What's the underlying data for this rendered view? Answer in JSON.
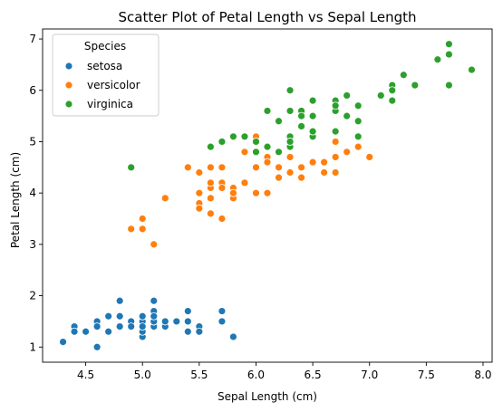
{
  "chart_data": {
    "type": "scatter",
    "title": "Scatter Plot of Petal Length vs Sepal Length",
    "xlabel": "Sepal Length (cm)",
    "ylabel": "Petal Length (cm)",
    "xlim": [
      4.12,
      8.08
    ],
    "ylim": [
      0.705,
      7.195
    ],
    "xticks": [
      4.5,
      5.0,
      5.5,
      6.0,
      6.5,
      7.0,
      7.5,
      8.0
    ],
    "xtick_labels": [
      "4.5",
      "5.0",
      "5.5",
      "6.0",
      "6.5",
      "7.0",
      "7.5",
      "8.0"
    ],
    "yticks": [
      1,
      2,
      3,
      4,
      5,
      6,
      7
    ],
    "ytick_labels": [
      "1",
      "2",
      "3",
      "4",
      "5",
      "6",
      "7"
    ],
    "grid": false,
    "legend": {
      "title": "Species",
      "placement": "top-left"
    },
    "series": [
      {
        "name": "setosa",
        "color": "#1f77b4",
        "points": [
          [
            5.1,
            1.4
          ],
          [
            4.9,
            1.4
          ],
          [
            4.7,
            1.3
          ],
          [
            4.6,
            1.5
          ],
          [
            5.0,
            1.4
          ],
          [
            5.4,
            1.7
          ],
          [
            4.6,
            1.4
          ],
          [
            5.0,
            1.5
          ],
          [
            4.4,
            1.4
          ],
          [
            4.9,
            1.5
          ],
          [
            5.4,
            1.5
          ],
          [
            4.8,
            1.6
          ],
          [
            4.8,
            1.4
          ],
          [
            4.3,
            1.1
          ],
          [
            5.8,
            1.2
          ],
          [
            5.7,
            1.5
          ],
          [
            5.4,
            1.3
          ],
          [
            5.1,
            1.4
          ],
          [
            5.7,
            1.7
          ],
          [
            5.1,
            1.5
          ],
          [
            5.4,
            1.7
          ],
          [
            5.1,
            1.5
          ],
          [
            4.6,
            1.0
          ],
          [
            5.1,
            1.7
          ],
          [
            4.8,
            1.9
          ],
          [
            5.0,
            1.6
          ],
          [
            5.0,
            1.6
          ],
          [
            5.2,
            1.5
          ],
          [
            5.2,
            1.4
          ],
          [
            4.7,
            1.6
          ],
          [
            4.8,
            1.6
          ],
          [
            5.4,
            1.5
          ],
          [
            5.2,
            1.5
          ],
          [
            5.5,
            1.4
          ],
          [
            4.9,
            1.5
          ],
          [
            5.0,
            1.2
          ],
          [
            5.5,
            1.3
          ],
          [
            4.9,
            1.4
          ],
          [
            4.4,
            1.3
          ],
          [
            5.1,
            1.5
          ],
          [
            5.0,
            1.3
          ],
          [
            4.5,
            1.3
          ],
          [
            4.4,
            1.3
          ],
          [
            5.0,
            1.6
          ],
          [
            5.1,
            1.9
          ],
          [
            4.8,
            1.4
          ],
          [
            5.1,
            1.6
          ],
          [
            4.6,
            1.4
          ],
          [
            5.3,
            1.5
          ],
          [
            5.0,
            1.4
          ]
        ]
      },
      {
        "name": "versicolor",
        "color": "#ff7f0e",
        "points": [
          [
            7.0,
            4.7
          ],
          [
            6.4,
            4.5
          ],
          [
            6.9,
            4.9
          ],
          [
            5.5,
            4.0
          ],
          [
            6.5,
            4.6
          ],
          [
            5.7,
            4.5
          ],
          [
            6.3,
            4.7
          ],
          [
            4.9,
            3.3
          ],
          [
            6.6,
            4.6
          ],
          [
            5.2,
            3.9
          ],
          [
            5.0,
            3.5
          ],
          [
            5.9,
            4.2
          ],
          [
            6.0,
            4.0
          ],
          [
            6.1,
            4.7
          ],
          [
            5.6,
            3.6
          ],
          [
            6.7,
            4.4
          ],
          [
            5.6,
            4.5
          ],
          [
            5.8,
            4.1
          ],
          [
            6.2,
            4.5
          ],
          [
            5.6,
            3.9
          ],
          [
            5.9,
            4.8
          ],
          [
            6.1,
            4.0
          ],
          [
            6.3,
            4.9
          ],
          [
            6.1,
            4.7
          ],
          [
            6.4,
            4.3
          ],
          [
            6.6,
            4.4
          ],
          [
            6.8,
            4.8
          ],
          [
            6.7,
            5.0
          ],
          [
            6.0,
            4.5
          ],
          [
            5.7,
            3.5
          ],
          [
            5.5,
            3.8
          ],
          [
            5.5,
            3.7
          ],
          [
            5.8,
            3.9
          ],
          [
            6.0,
            5.1
          ],
          [
            5.4,
            4.5
          ],
          [
            6.0,
            4.5
          ],
          [
            6.7,
            4.7
          ],
          [
            6.3,
            4.4
          ],
          [
            5.6,
            4.1
          ],
          [
            5.5,
            4.0
          ],
          [
            5.5,
            4.4
          ],
          [
            6.1,
            4.6
          ],
          [
            5.8,
            4.0
          ],
          [
            5.0,
            3.3
          ],
          [
            5.6,
            4.2
          ],
          [
            5.7,
            4.2
          ],
          [
            5.7,
            4.2
          ],
          [
            6.2,
            4.3
          ],
          [
            5.1,
            3.0
          ],
          [
            5.7,
            4.1
          ]
        ]
      },
      {
        "name": "virginica",
        "color": "#2ca02c",
        "points": [
          [
            6.3,
            6.0
          ],
          [
            5.8,
            5.1
          ],
          [
            7.1,
            5.9
          ],
          [
            6.3,
            5.6
          ],
          [
            6.5,
            5.8
          ],
          [
            7.6,
            6.6
          ],
          [
            4.9,
            4.5
          ],
          [
            7.3,
            6.3
          ],
          [
            6.7,
            5.8
          ],
          [
            7.2,
            6.1
          ],
          [
            6.5,
            5.1
          ],
          [
            6.4,
            5.3
          ],
          [
            6.8,
            5.5
          ],
          [
            5.7,
            5.0
          ],
          [
            5.8,
            5.1
          ],
          [
            6.4,
            5.3
          ],
          [
            6.5,
            5.5
          ],
          [
            7.7,
            6.7
          ],
          [
            7.7,
            6.9
          ],
          [
            6.0,
            5.0
          ],
          [
            6.9,
            5.7
          ],
          [
            5.6,
            4.9
          ],
          [
            7.7,
            6.7
          ],
          [
            6.3,
            4.9
          ],
          [
            6.7,
            5.7
          ],
          [
            7.2,
            6.0
          ],
          [
            6.2,
            4.8
          ],
          [
            6.1,
            4.9
          ],
          [
            6.4,
            5.6
          ],
          [
            7.2,
            5.8
          ],
          [
            7.4,
            6.1
          ],
          [
            7.9,
            6.4
          ],
          [
            6.4,
            5.6
          ],
          [
            6.3,
            5.1
          ],
          [
            6.1,
            5.6
          ],
          [
            7.7,
            6.1
          ],
          [
            6.3,
            5.6
          ],
          [
            6.4,
            5.5
          ],
          [
            6.0,
            4.8
          ],
          [
            6.9,
            5.4
          ],
          [
            6.7,
            5.6
          ],
          [
            6.9,
            5.1
          ],
          [
            5.8,
            5.1
          ],
          [
            6.8,
            5.9
          ],
          [
            6.7,
            5.7
          ],
          [
            6.7,
            5.2
          ],
          [
            6.3,
            5.0
          ],
          [
            6.5,
            5.2
          ],
          [
            6.2,
            5.4
          ],
          [
            5.9,
            5.1
          ]
        ]
      }
    ]
  }
}
